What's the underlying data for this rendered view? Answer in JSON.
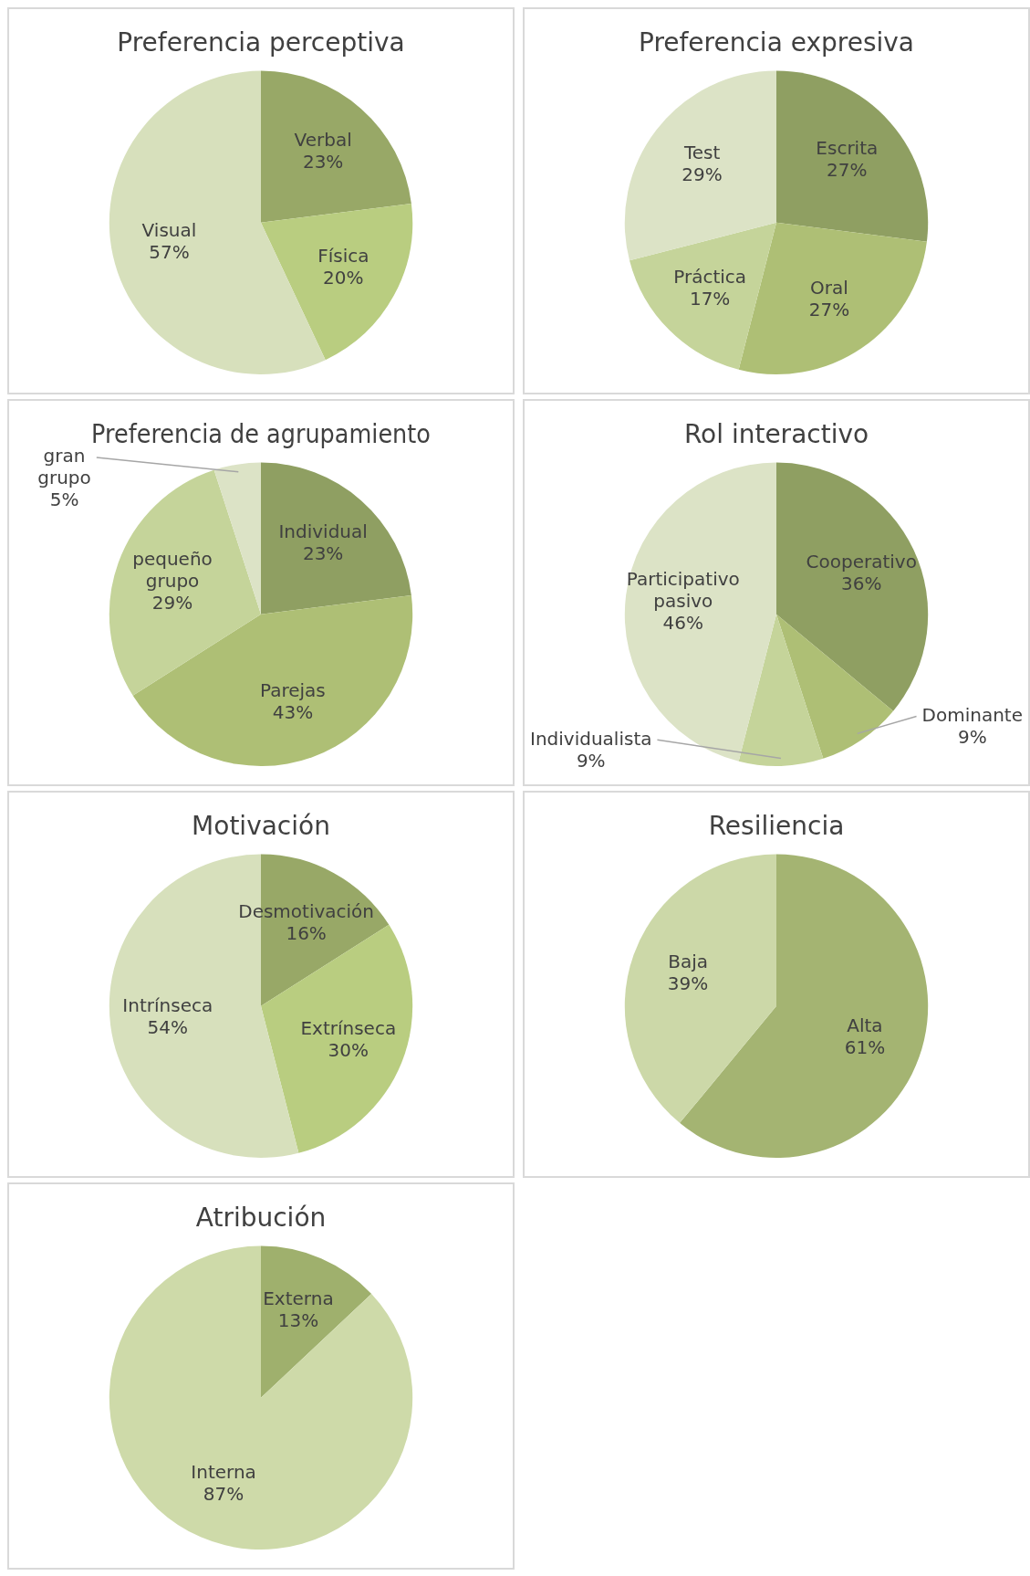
{
  "chart_data": [
    {
      "type": "pie",
      "title": "Preferencia perceptiva",
      "categories": [
        "Verbal",
        "Física",
        "Visual"
      ],
      "values": [
        23,
        20,
        57
      ],
      "value_labels": [
        "23%",
        "20%",
        "57%"
      ],
      "colors": [
        "#98a867",
        "#b9cd80",
        "#d7e0bc"
      ]
    },
    {
      "type": "pie",
      "title": "Preferencia expresiva",
      "categories": [
        "Escrita",
        "Oral",
        "Práctica",
        "Test"
      ],
      "values": [
        27,
        27,
        17,
        29
      ],
      "value_labels": [
        "27%",
        "27%",
        "17%",
        "29%"
      ],
      "colors": [
        "#8f9f62",
        "#aebf75",
        "#c5d49a",
        "#dce3c6"
      ]
    },
    {
      "type": "pie",
      "title": "Preferencia de agrupamiento",
      "categories": [
        "Individual",
        "Parejas",
        "pequeño grupo",
        "gran grupo"
      ],
      "values": [
        23,
        43,
        29,
        5
      ],
      "value_labels": [
        "23%",
        "43%",
        "29%",
        "5%"
      ],
      "colors": [
        "#8f9f62",
        "#aebf75",
        "#c5d49a",
        "#dce3c6"
      ]
    },
    {
      "type": "pie",
      "title": "Rol interactivo",
      "categories": [
        "Cooperativo",
        "Dominante",
        "Individualista",
        "Participativo pasivo"
      ],
      "values": [
        36,
        9,
        9,
        46
      ],
      "value_labels": [
        "36%",
        "9%",
        "9%",
        "46%"
      ],
      "colors": [
        "#8f9f62",
        "#aebf75",
        "#c5d49a",
        "#dce3c6"
      ]
    },
    {
      "type": "pie",
      "title": "Motivación",
      "categories": [
        "Desmotivación",
        "Extrínseca",
        "Intrínseca"
      ],
      "values": [
        16,
        30,
        54
      ],
      "value_labels": [
        "16%",
        "30%",
        "54%"
      ],
      "colors": [
        "#98a867",
        "#b9cd80",
        "#d7e0bc"
      ]
    },
    {
      "type": "pie",
      "title": "Resiliencia",
      "categories": [
        "Alta",
        "Baja"
      ],
      "values": [
        61,
        39
      ],
      "value_labels": [
        "61%",
        "39%"
      ],
      "colors": [
        "#a4b472",
        "#ccd8a8"
      ]
    },
    {
      "type": "pie",
      "title": "Atribución",
      "categories": [
        "Externa",
        "Interna"
      ],
      "values": [
        13,
        87
      ],
      "value_labels": [
        "13%",
        "87%"
      ],
      "colors": [
        "#9fb06d",
        "#cedaa9"
      ]
    }
  ]
}
